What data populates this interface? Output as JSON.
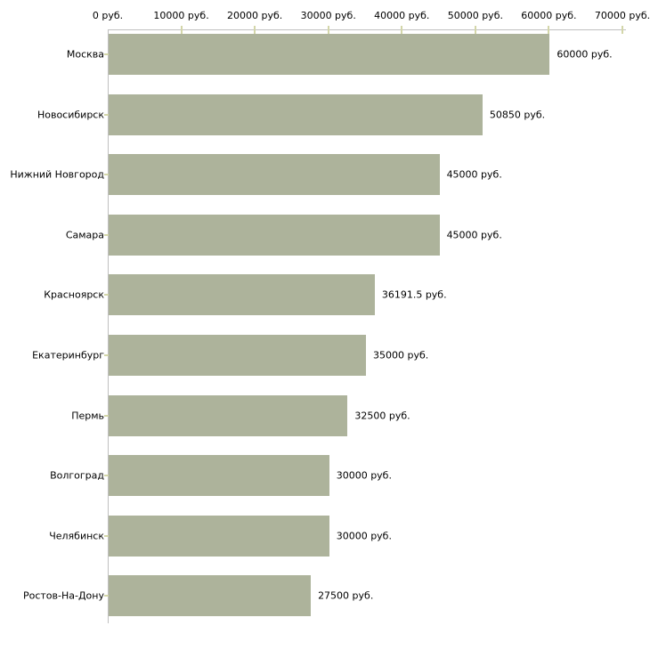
{
  "chart_data": {
    "type": "bar",
    "orientation": "horizontal",
    "title": "",
    "xlabel": "",
    "ylabel": "",
    "unit_suffix": " руб.",
    "xlim": [
      0,
      70000
    ],
    "x_ticks": [
      0,
      10000,
      20000,
      30000,
      40000,
      50000,
      60000,
      70000
    ],
    "x_tick_labels": [
      "0 руб.",
      "10000 руб.",
      "20000 руб.",
      "30000 руб.",
      "40000 руб.",
      "50000 руб.",
      "60000 руб.",
      "70000 руб."
    ],
    "categories": [
      "Москва",
      "Новосибирск",
      "Нижний Новгород",
      "Самара",
      "Красноярск",
      "Екатеринбург",
      "Пермь",
      "Волгоград",
      "Челябинск",
      "Ростов-На-Дону"
    ],
    "values": [
      60000,
      50850,
      45000,
      45000,
      36191.5,
      35000,
      32500,
      30000,
      30000,
      27500
    ],
    "value_labels": [
      "60000 руб.",
      "50850 руб.",
      "45000 руб.",
      "45000 руб.",
      "36191.5 руб.",
      "35000 руб.",
      "32500 руб.",
      "30000 руб.",
      "30000 руб.",
      "27500 руб."
    ],
    "grid": false,
    "legend": false,
    "colors": {
      "bar_fill": "#adb39b",
      "axis_line": "#c0c0c0",
      "tick_mark": "#d3d6a9",
      "text": "#000000",
      "background": "#ffffff"
    }
  }
}
